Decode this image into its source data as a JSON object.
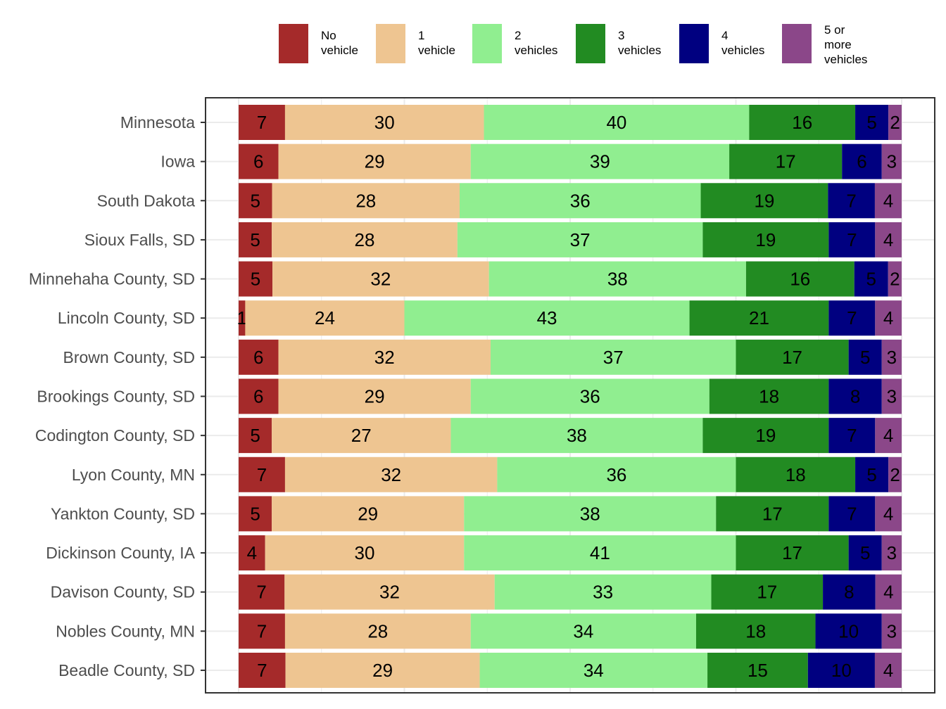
{
  "chart_data": {
    "type": "bar",
    "orientation": "horizontal",
    "stacked": true,
    "normalized": true,
    "categories": [
      "Minnesota",
      "Iowa",
      "South Dakota",
      "Sioux Falls, SD",
      "Minnehaha County, SD",
      "Lincoln County, SD",
      "Brown County, SD",
      "Brookings County, SD",
      "Codington County, SD",
      "Lyon County, MN",
      "Yankton County, SD",
      "Dickinson County, IA",
      "Davison County, SD",
      "Nobles County, MN",
      "Beadle County, SD"
    ],
    "series": [
      {
        "name": "No\nvehicle",
        "color": "#a52a2a",
        "values": [
          7,
          6,
          5,
          5,
          5,
          1,
          6,
          6,
          5,
          7,
          5,
          4,
          7,
          7,
          7
        ]
      },
      {
        "name": "1\nvehicle",
        "color": "#eec591",
        "values": [
          30,
          29,
          28,
          28,
          32,
          24,
          32,
          29,
          27,
          32,
          29,
          30,
          32,
          28,
          29
        ]
      },
      {
        "name": "2\nvehicles",
        "color": "#90ee90",
        "values": [
          40,
          39,
          36,
          37,
          38,
          43,
          37,
          36,
          38,
          36,
          38,
          41,
          33,
          34,
          34
        ]
      },
      {
        "name": "3\nvehicles",
        "color": "#228b22",
        "values": [
          16,
          17,
          19,
          19,
          16,
          21,
          17,
          18,
          19,
          18,
          17,
          17,
          17,
          18,
          15
        ]
      },
      {
        "name": "4\nvehicles",
        "color": "#000080",
        "values": [
          5,
          6,
          7,
          7,
          5,
          7,
          5,
          8,
          7,
          5,
          7,
          5,
          8,
          10,
          10
        ]
      },
      {
        "name": "5 or\nmore\nvehicles",
        "color": "#8b4789",
        "values": [
          2,
          3,
          4,
          4,
          2,
          4,
          3,
          3,
          4,
          2,
          4,
          3,
          4,
          3,
          4
        ]
      }
    ],
    "grid": true,
    "legend_position": "top"
  }
}
